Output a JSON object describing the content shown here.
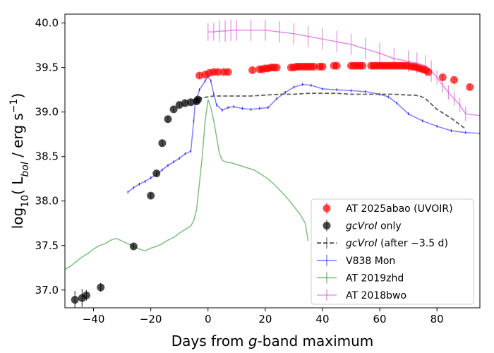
{
  "chart_data": {
    "type": "scatter",
    "title": "",
    "xlabel_parts": [
      "Days from ",
      "g",
      "-band maximum"
    ],
    "ylabel_parts": [
      "log",
      "10",
      "( L",
      "bol",
      " / erg s",
      "−1",
      ")"
    ],
    "xlim": [
      -50,
      95
    ],
    "ylim": [
      36.8,
      40.1
    ],
    "xticks": [
      -40,
      -20,
      0,
      20,
      40,
      60,
      80
    ],
    "xtick_labels": [
      "−40",
      "−20",
      "0",
      "20",
      "40",
      "60",
      "80"
    ],
    "yticks": [
      37.0,
      37.5,
      38.0,
      38.5,
      39.0,
      39.5,
      40.0
    ],
    "ytick_labels": [
      "37.0",
      "37.5",
      "38.0",
      "38.5",
      "39.0",
      "39.5",
      "40.0"
    ],
    "legend_position": "lower-right",
    "legend": [
      {
        "key": "abao",
        "label": "AT 2025abao (UVOIR)",
        "marker": "dot-err",
        "color": "#ff0000"
      },
      {
        "key": "gc",
        "label_parts": [
          [
            "gcVroI",
            true
          ],
          [
            " only",
            false
          ]
        ],
        "marker": "dot-err",
        "color": "#000000"
      },
      {
        "key": "gcl",
        "label_parts": [
          [
            "gcVroI",
            true
          ],
          [
            " (after −3.5 d)",
            false
          ]
        ],
        "marker": "dash-err",
        "color": "#000000"
      },
      {
        "key": "v838",
        "label": "V838 Mon",
        "marker": "line-err",
        "color": "#0000ff"
      },
      {
        "key": "zhd",
        "label": "AT 2019zhd",
        "marker": "line-err",
        "color": "#008000"
      },
      {
        "key": "bwo",
        "label": "AT 2018bwo",
        "marker": "line-err",
        "color": "#cc33cc"
      }
    ],
    "series": [
      {
        "name": "AT 2025abao (UVOIR)",
        "color": "#ff0000",
        "kind": "points",
        "x": [
          -3,
          -1,
          0.5,
          2,
          3.5,
          5.5,
          7,
          15.5,
          18,
          19,
          20,
          21,
          22,
          23,
          24,
          29,
          30,
          31,
          32,
          33,
          34,
          35,
          36,
          37,
          39,
          40,
          44,
          45,
          50,
          51,
          52,
          53,
          54,
          57,
          58,
          59,
          60,
          61,
          62,
          63,
          64,
          65,
          66,
          67,
          68,
          69,
          70,
          71,
          72,
          73,
          74,
          75,
          76,
          77,
          82,
          86,
          91.5
        ],
        "y": [
          39.41,
          39.42,
          39.44,
          39.45,
          39.45,
          39.45,
          39.45,
          39.47,
          39.48,
          39.48,
          39.49,
          39.49,
          39.5,
          39.5,
          39.5,
          39.5,
          39.5,
          39.51,
          39.51,
          39.51,
          39.51,
          39.51,
          39.51,
          39.51,
          39.51,
          39.51,
          39.52,
          39.52,
          39.52,
          39.52,
          39.52,
          39.52,
          39.52,
          39.52,
          39.52,
          39.52,
          39.52,
          39.52,
          39.52,
          39.52,
          39.52,
          39.52,
          39.52,
          39.52,
          39.52,
          39.52,
          39.52,
          39.51,
          39.51,
          39.5,
          39.49,
          39.48,
          39.47,
          39.45,
          39.39,
          39.36,
          39.28
        ],
        "err": [
          0.03,
          0.03,
          0.03,
          0.03,
          0.03,
          0.03,
          0.03,
          0.03,
          0.03,
          0.03,
          0.03,
          0.03,
          0.03,
          0.03,
          0.03,
          0.03,
          0.03,
          0.03,
          0.03,
          0.03,
          0.03,
          0.03,
          0.03,
          0.03,
          0.03,
          0.03,
          0.03,
          0.03,
          0.03,
          0.03,
          0.03,
          0.03,
          0.03,
          0.03,
          0.03,
          0.03,
          0.03,
          0.03,
          0.03,
          0.03,
          0.03,
          0.03,
          0.03,
          0.03,
          0.03,
          0.03,
          0.03,
          0.03,
          0.03,
          0.03,
          0.03,
          0.03,
          0.03,
          0.03,
          0.03,
          0.03,
          0.03
        ]
      },
      {
        "name": "gcVroI only",
        "color": "#000000",
        "kind": "points",
        "x": [
          -46.5,
          -44,
          -42.5,
          -37.5,
          -26,
          -20,
          -18,
          -16,
          -14,
          -12,
          -10,
          -8,
          -6,
          -4,
          -3.5
        ],
        "y": [
          36.89,
          36.91,
          36.94,
          37.03,
          37.49,
          38.06,
          38.31,
          38.65,
          38.92,
          39.03,
          39.08,
          39.1,
          39.11,
          39.12,
          39.14
        ],
        "err": [
          0.1,
          0.1,
          0.06,
          0.05,
          0.03,
          0.03,
          0.03,
          0.03,
          0.03,
          0.03,
          0.03,
          0.03,
          0.03,
          0.03,
          0.03
        ]
      },
      {
        "name": "gcVroI (after −3.5 d)",
        "color": "#555555",
        "kind": "dashed",
        "x": [
          -3.5,
          0,
          2,
          5,
          10,
          15,
          20,
          25,
          30,
          35,
          40,
          45,
          50,
          55,
          60,
          65,
          70,
          72,
          74,
          76,
          78,
          80,
          85,
          90
        ],
        "y": [
          39.15,
          39.17,
          39.18,
          39.18,
          39.18,
          39.18,
          39.19,
          39.2,
          39.2,
          39.21,
          39.21,
          39.21,
          39.2,
          39.2,
          39.2,
          39.2,
          39.19,
          39.19,
          39.18,
          39.15,
          39.09,
          39.03,
          38.93,
          38.81
        ]
      },
      {
        "name": "V838 Mon",
        "color": "#0000ff",
        "kind": "line",
        "x": [
          -28,
          -26,
          -24,
          -22,
          -20,
          -18,
          -16,
          -14,
          -12,
          -10,
          -8,
          -6,
          -5,
          -4.5,
          -3,
          -1,
          0,
          1,
          2,
          3,
          5,
          7,
          9,
          12,
          15,
          18,
          21,
          24,
          27,
          30,
          33,
          36,
          40,
          45,
          50,
          55,
          60,
          63,
          66,
          70,
          75,
          80,
          85,
          90,
          95
        ],
        "y": [
          38.1,
          38.15,
          38.19,
          38.22,
          38.26,
          38.3,
          38.35,
          38.4,
          38.44,
          38.48,
          38.53,
          38.56,
          38.9,
          39.1,
          39.25,
          39.35,
          39.4,
          39.35,
          39.2,
          39.08,
          39.02,
          39.05,
          39.06,
          39.04,
          39.03,
          39.04,
          39.05,
          39.15,
          39.22,
          39.28,
          39.31,
          39.3,
          39.26,
          39.25,
          39.24,
          39.23,
          39.2,
          39.17,
          39.1,
          38.98,
          38.9,
          38.84,
          38.79,
          38.77,
          38.76
        ]
      },
      {
        "name": "AT 2019zhd",
        "color": "#008000",
        "kind": "line",
        "x": [
          -50,
          -48,
          -46,
          -44,
          -42,
          -40,
          -38,
          -36,
          -34,
          -32,
          -30,
          -28,
          -26,
          -24,
          -22,
          -20,
          -18,
          -16,
          -14,
          -12,
          -10,
          -8,
          -6,
          -5,
          -4,
          -3,
          -2,
          -1,
          0,
          1,
          2,
          3,
          4,
          5,
          6,
          8,
          10,
          12,
          14,
          16,
          18,
          20,
          22,
          24,
          26,
          28,
          30,
          32,
          34,
          35
        ],
        "y": [
          37.23,
          37.27,
          37.32,
          37.37,
          37.41,
          37.46,
          37.5,
          37.52,
          37.56,
          37.58,
          37.55,
          37.52,
          37.49,
          37.46,
          37.44,
          37.47,
          37.49,
          37.52,
          37.56,
          37.59,
          37.64,
          37.68,
          37.72,
          37.78,
          37.9,
          38.2,
          38.5,
          38.9,
          39.14,
          39.05,
          38.9,
          38.72,
          38.53,
          38.46,
          38.44,
          38.43,
          38.41,
          38.39,
          38.37,
          38.35,
          38.31,
          38.27,
          38.22,
          38.16,
          38.09,
          38.02,
          37.94,
          37.86,
          37.75,
          37.55
        ]
      },
      {
        "name": "AT 2018bwo",
        "color": "#cc33cc",
        "kind": "line",
        "x": [
          0,
          2,
          4,
          6,
          8,
          10,
          15,
          20,
          25,
          30,
          35,
          40,
          45,
          50,
          55,
          60,
          65,
          70,
          73,
          76,
          78,
          80,
          82,
          84,
          86,
          88,
          90,
          95
        ],
        "y": [
          39.9,
          39.9,
          39.91,
          39.91,
          39.92,
          39.92,
          39.92,
          39.92,
          39.9,
          39.88,
          39.85,
          39.82,
          39.79,
          39.76,
          39.71,
          39.66,
          39.6,
          39.57,
          39.55,
          39.52,
          39.46,
          39.39,
          39.3,
          39.22,
          39.15,
          39.08,
          38.98,
          38.96
        ],
        "err": [
          0.1,
          0.1,
          0.12,
          0.12,
          0.12,
          0.12,
          0.12,
          0.12,
          0.12,
          0.12,
          0.12,
          0.12,
          0.12,
          0.12,
          0.12,
          0.12,
          0.12,
          0.12,
          0.12,
          0.12,
          0.12,
          0.08,
          0.08,
          0.08,
          0.08,
          0.08,
          0.08,
          0.05
        ]
      }
    ]
  }
}
